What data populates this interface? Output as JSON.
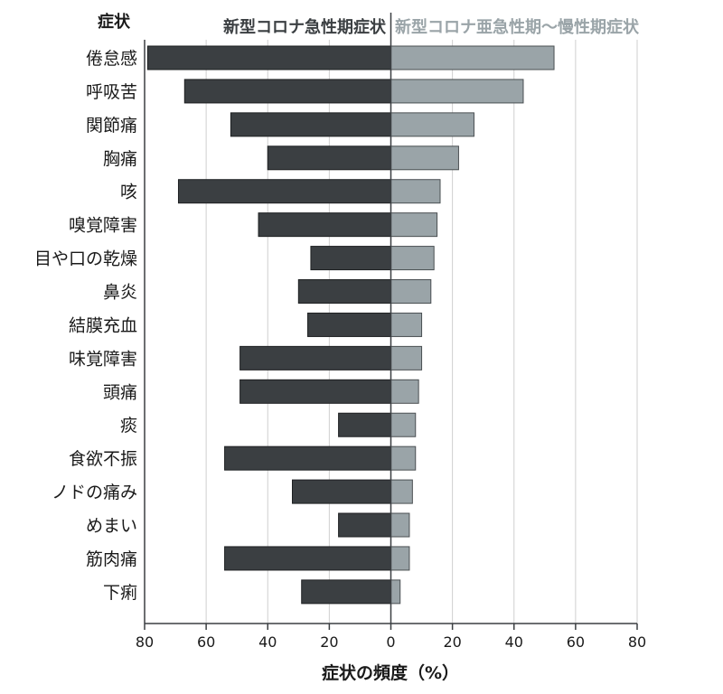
{
  "chart_data": {
    "type": "bar",
    "orientation": "horizontal-diverging",
    "ylabel": "症状",
    "xlabel": "症状の頻度（%）",
    "categories": [
      "倦怠感",
      "呼吸苦",
      "関節痛",
      "胸痛",
      "咳",
      "嗅覚障害",
      "目や口の乾燥",
      "鼻炎",
      "結膜充血",
      "味覚障害",
      "頭痛",
      "痰",
      "食欲不振",
      "ノドの痛み",
      "めまい",
      "筋肉痛",
      "下痢"
    ],
    "series": [
      {
        "name": "新型コロナ急性期症状",
        "side": "left",
        "color": "#3b3f42",
        "values": [
          79,
          67,
          52,
          40,
          69,
          43,
          26,
          30,
          27,
          49,
          49,
          17,
          54,
          32,
          17,
          54,
          29
        ]
      },
      {
        "name": "新型コロナ亜急性期〜慢性期症状",
        "side": "right",
        "color": "#9aa4a8",
        "values": [
          53,
          43,
          27,
          22,
          16,
          15,
          14,
          13,
          10,
          10,
          9,
          8,
          8,
          7,
          6,
          6,
          3
        ]
      }
    ],
    "xlim": [
      -80,
      80
    ],
    "xticks": [
      -80,
      -60,
      -40,
      -20,
      0,
      20,
      40,
      60,
      80
    ],
    "xtick_labels": [
      "80",
      "60",
      "40",
      "20",
      "0",
      "20",
      "40",
      "60",
      "80"
    ],
    "grid": true,
    "legend": "headers-above-bars"
  }
}
